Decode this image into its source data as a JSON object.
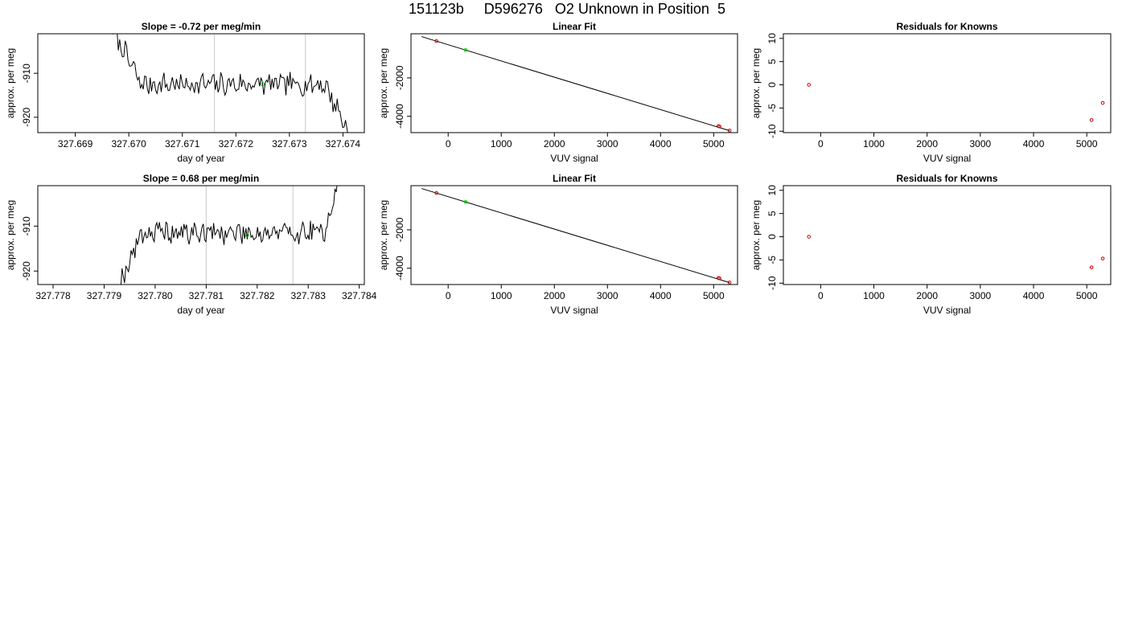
{
  "figure": {
    "title": "151123b     D596276   O2 Unknown in Position  5"
  },
  "chart_data": [
    {
      "id": "ts1",
      "type": "line",
      "title": "Slope =  -0.72  per meg/min",
      "xlabel": "day of year",
      "ylabel": "approx. per meg",
      "xlim": [
        327.6683,
        327.6744
      ],
      "ylim": [
        -923.5,
        -901
      ],
      "xticks": [
        "327.669",
        "327.670",
        "327.671",
        "327.672",
        "327.673",
        "327.674"
      ],
      "xtick_values": [
        327.669,
        327.67,
        327.671,
        327.672,
        327.673,
        327.674
      ],
      "yticks": [
        "-920",
        "-910"
      ],
      "ytick_values": [
        -920,
        -910
      ],
      "vlines": [
        327.6716,
        327.6733
      ],
      "marker": {
        "x": 327.6725,
        "y": -912.5,
        "color": "#00cc00"
      },
      "series": [
        {
          "x_start": 327.6697,
          "x_end": 327.6741,
          "start_y": -900,
          "level": -912.5,
          "end_y": -923,
          "noise": 2.2,
          "shape": "start-high",
          "seed": 7
        }
      ]
    },
    {
      "id": "fit1",
      "type": "scatter",
      "title": "Linear Fit",
      "xlabel": "VUV signal",
      "ylabel": "approx. per meg",
      "xlim": [
        -700,
        5450
      ],
      "ylim": [
        -4850,
        300
      ],
      "xticks": [
        "0",
        "1000",
        "2000",
        "3000",
        "4000",
        "5000"
      ],
      "xtick_values": [
        0,
        1000,
        2000,
        3000,
        4000,
        5000
      ],
      "yticks": [
        "-4000",
        "-2000"
      ],
      "ytick_values": [
        -4000,
        -2000
      ],
      "fit_line": {
        "x": [
          -500,
          5300
        ],
        "y": [
          150,
          -4750
        ]
      },
      "points": [
        {
          "x": -220,
          "y": -80,
          "color": "#cc0000"
        },
        {
          "x": 330,
          "y": -550,
          "color": "#00cc00"
        },
        {
          "x": 5090,
          "y": -4510,
          "color": "#cc0000"
        },
        {
          "x": 5110,
          "y": -4530,
          "color": "#cc0000"
        },
        {
          "x": 5300,
          "y": -4740,
          "color": "#cc0000"
        }
      ]
    },
    {
      "id": "res1",
      "type": "scatter",
      "title": "Residuals for Knowns",
      "xlabel": "VUV signal",
      "ylabel": "approx. per meg",
      "xlim": [
        -700,
        5450
      ],
      "ylim": [
        -10.3,
        11
      ],
      "xticks": [
        "0",
        "1000",
        "2000",
        "3000",
        "4000",
        "5000"
      ],
      "xtick_values": [
        0,
        1000,
        2000,
        3000,
        4000,
        5000
      ],
      "yticks": [
        "-10",
        "-5",
        "0",
        "5",
        "10"
      ],
      "ytick_values": [
        -10,
        -5,
        0,
        5,
        10
      ],
      "points": [
        {
          "x": -220,
          "y": 0,
          "color": "#cc0000"
        },
        {
          "x": 5090,
          "y": -7.6,
          "color": "#cc0000"
        },
        {
          "x": 5300,
          "y": -3.9,
          "color": "#cc0000"
        }
      ]
    },
    {
      "id": "ts2",
      "type": "line",
      "title": "Slope =  0.68  per meg/min",
      "xlabel": "day of year",
      "ylabel": "approx. per meg",
      "xlim": [
        327.7777,
        327.7841
      ],
      "ylim": [
        -923,
        -901
      ],
      "xticks": [
        "327.778",
        "327.779",
        "327.780",
        "327.781",
        "327.782",
        "327.783",
        "327.784"
      ],
      "xtick_values": [
        327.778,
        327.779,
        327.78,
        327.781,
        327.782,
        327.783,
        327.784
      ],
      "yticks": [
        "-920",
        "-910"
      ],
      "ytick_values": [
        -920,
        -910
      ],
      "vlines": [
        327.781,
        327.7827
      ],
      "marker": {
        "x": 327.7818,
        "y": -912,
        "color": "#00cc00"
      },
      "series": [
        {
          "x_start": 327.7793,
          "x_end": 327.7836,
          "start_y": -923,
          "level": -911.5,
          "end_y": -900,
          "noise": 2.2,
          "shape": "end-high",
          "seed": 19
        }
      ]
    },
    {
      "id": "fit2",
      "type": "scatter",
      "title": "Linear Fit",
      "xlabel": "VUV signal",
      "ylabel": "approx. per meg",
      "xlim": [
        -700,
        5450
      ],
      "ylim": [
        -4850,
        300
      ],
      "xticks": [
        "0",
        "1000",
        "2000",
        "3000",
        "4000",
        "5000"
      ],
      "xtick_values": [
        0,
        1000,
        2000,
        3000,
        4000,
        5000
      ],
      "yticks": [
        "-4000",
        "-2000"
      ],
      "ytick_values": [
        -4000,
        -2000
      ],
      "fit_line": {
        "x": [
          -500,
          5300
        ],
        "y": [
          150,
          -4750
        ]
      },
      "points": [
        {
          "x": -220,
          "y": -80,
          "color": "#cc0000"
        },
        {
          "x": 330,
          "y": -550,
          "color": "#00cc00"
        },
        {
          "x": 5090,
          "y": -4510,
          "color": "#cc0000"
        },
        {
          "x": 5110,
          "y": -4530,
          "color": "#cc0000"
        },
        {
          "x": 5300,
          "y": -4740,
          "color": "#cc0000"
        }
      ]
    },
    {
      "id": "res2",
      "type": "scatter",
      "title": "Residuals for Knowns",
      "xlabel": "VUV signal",
      "ylabel": "approx. per meg",
      "xlim": [
        -700,
        5450
      ],
      "ylim": [
        -10.3,
        11
      ],
      "xticks": [
        "0",
        "1000",
        "2000",
        "3000",
        "4000",
        "5000"
      ],
      "xtick_values": [
        0,
        1000,
        2000,
        3000,
        4000,
        5000
      ],
      "yticks": [
        "-10",
        "-5",
        "0",
        "5",
        "10"
      ],
      "ytick_values": [
        -10,
        -5,
        0,
        5,
        10
      ],
      "points": [
        {
          "x": -220,
          "y": 0,
          "color": "#cc0000"
        },
        {
          "x": 5090,
          "y": -6.6,
          "color": "#cc0000"
        },
        {
          "x": 5300,
          "y": -4.7,
          "color": "#cc0000"
        }
      ]
    }
  ]
}
